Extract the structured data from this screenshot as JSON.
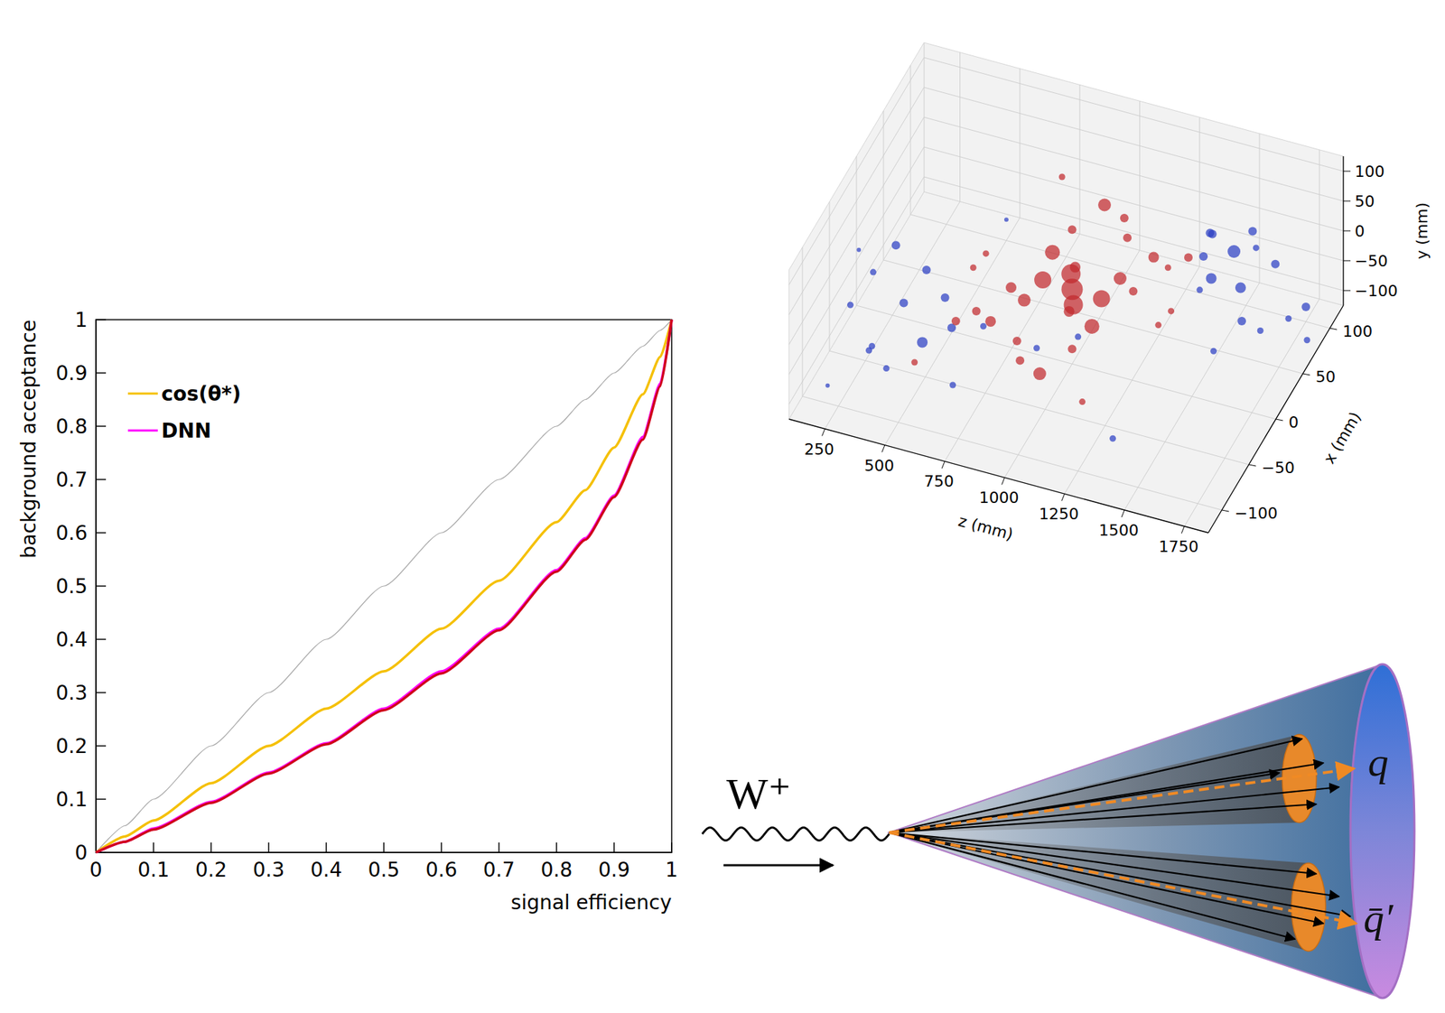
{
  "chart_data": [
    {
      "type": "line",
      "xlabel": "signal efficiency",
      "ylabel": "background acceptance",
      "x": [
        0,
        0.05,
        0.1,
        0.2,
        0.3,
        0.4,
        0.5,
        0.6,
        0.7,
        0.8,
        0.85,
        0.9,
        0.95,
        0.98,
        1
      ],
      "series": [
        {
          "color": "#a8a8a8",
          "line_style": "thin",
          "values": [
            0,
            0.05,
            0.1,
            0.2,
            0.3,
            0.4,
            0.5,
            0.6,
            0.7,
            0.8,
            0.85,
            0.9,
            0.95,
            0.98,
            1
          ]
        },
        {
          "name": "cos(θ*)",
          "color": "#f5c000",
          "values": [
            0,
            0.03,
            0.06,
            0.13,
            0.2,
            0.27,
            0.34,
            0.42,
            0.51,
            0.62,
            0.68,
            0.76,
            0.86,
            0.93,
            1
          ]
        },
        {
          "name": "DNN",
          "color": "#ff00ff",
          "values": [
            0,
            0.02,
            0.045,
            0.095,
            0.15,
            0.205,
            0.27,
            0.34,
            0.42,
            0.53,
            0.59,
            0.67,
            0.78,
            0.88,
            1
          ]
        },
        {
          "color": "#d0021b",
          "values": [
            0,
            0.02,
            0.043,
            0.093,
            0.148,
            0.203,
            0.267,
            0.336,
            0.417,
            0.527,
            0.587,
            0.667,
            0.775,
            0.875,
            1
          ]
        }
      ],
      "xlim": [
        0,
        1
      ],
      "ylim": [
        0,
        1
      ],
      "xticks": [
        0,
        0.1,
        0.2,
        0.3,
        0.4,
        0.5,
        0.6,
        0.7,
        0.8,
        0.9,
        1
      ],
      "yticks": [
        0,
        0.1,
        0.2,
        0.3,
        0.4,
        0.5,
        0.6,
        0.7,
        0.8,
        0.9,
        1
      ],
      "grid": false,
      "legend": "upper left"
    },
    {
      "type": "scatter3d",
      "xlabel": "x (mm)",
      "ylabel": "y (mm)",
      "zlabel": "z (mm)",
      "xlim": [
        -125,
        125
      ],
      "ylim": [
        -125,
        125
      ],
      "zlim": [
        100,
        1850
      ],
      "xticks": [
        {
          "value": -100,
          "label": "−100"
        },
        {
          "value": -50,
          "label": "−50"
        },
        0,
        50,
        100
      ],
      "yticks": [
        {
          "value": -100,
          "label": "−100"
        },
        {
          "value": -50,
          "label": "−50"
        },
        0,
        50,
        100
      ],
      "zticks": [
        250,
        500,
        750,
        1000,
        1250,
        1500,
        1750
      ],
      "grid": true,
      "series": [
        {
          "color": "#2b3fc4",
          "points": [
            {
              "x": -100,
              "y": 50,
              "z": 300,
              "size": 2
            },
            {
              "x": -80,
              "y": 80,
              "z": 350,
              "size": 2
            },
            {
              "x": -60,
              "y": 100,
              "z": 400,
              "size": 3
            },
            {
              "x": -100,
              "y": -40,
              "z": 450,
              "size": 2
            },
            {
              "x": -90,
              "y": 60,
              "z": 500,
              "size": 3
            },
            {
              "x": -70,
              "y": 90,
              "z": 550,
              "size": 3
            },
            {
              "x": -100,
              "y": 20,
              "z": 600,
              "size": 4
            },
            {
              "x": -80,
              "y": 70,
              "z": 650,
              "size": 3
            },
            {
              "x": -110,
              "y": 0,
              "z": 400,
              "size": 2
            },
            {
              "x": -60,
              "y": -80,
              "z": 300,
              "size": 2
            },
            {
              "x": -90,
              "y": 40,
              "z": 700,
              "size": 3
            },
            {
              "x": -110,
              "y": -20,
              "z": 750,
              "size": 2
            },
            {
              "x": 80,
              "y": -60,
              "z": 1400,
              "size": 4
            },
            {
              "x": 100,
              "y": -40,
              "z": 1450,
              "size": 5
            },
            {
              "x": 90,
              "y": -80,
              "z": 1500,
              "size": 4
            },
            {
              "x": 70,
              "y": -100,
              "z": 1550,
              "size": 3
            },
            {
              "x": 110,
              "y": -60,
              "z": 1600,
              "size": 3
            },
            {
              "x": 60,
              "y": -90,
              "z": 1650,
              "size": 2
            },
            {
              "x": 90,
              "y": -110,
              "z": 1700,
              "size": 2
            },
            {
              "x": 100,
              "y": -20,
              "z": 1350,
              "size": 3
            },
            {
              "x": 110,
              "y": -80,
              "z": 1300,
              "size": 3
            },
            {
              "x": 40,
              "y": -110,
              "z": 1500,
              "size": 2
            },
            {
              "x": 100,
              "y": -100,
              "z": 1750,
              "size": 3
            },
            {
              "x": 80,
              "y": -120,
              "z": 1800,
              "size": 2
            },
            {
              "x": -100,
              "y": 100,
              "z": 1250,
              "size": 2
            },
            {
              "x": -110,
              "y": 80,
              "z": 1100,
              "size": 2
            },
            {
              "x": -120,
              "y": 110,
              "z": 900,
              "size": 2
            },
            {
              "x": -40,
              "y": 40,
              "z": 200,
              "size": 1
            },
            {
              "x": -120,
              "y": -60,
              "z": 250,
              "size": 1
            },
            {
              "x": 30,
              "y": 100,
              "z": 1700,
              "size": 2
            },
            {
              "x": -30,
              "y": 110,
              "z": 1600,
              "size": 2
            },
            {
              "x": 60,
              "y": 50,
              "z": 1450,
              "size": 3
            },
            {
              "x": 90,
              "y": 20,
              "z": 1550,
              "size": 3
            },
            {
              "x": -80,
              "y": -90,
              "z": 1350,
              "size": 2
            },
            {
              "x": 100,
              "y": -90,
              "z": 500,
              "size": 1
            }
          ]
        },
        {
          "color": "#c0282d",
          "points": [
            {
              "x": 0,
              "y": 0,
              "z": 1000,
              "size": 9
            },
            {
              "x": 20,
              "y": -10,
              "z": 950,
              "size": 8
            },
            {
              "x": -20,
              "y": 10,
              "z": 1050,
              "size": 8
            },
            {
              "x": -10,
              "y": 20,
              "z": 900,
              "size": 7
            },
            {
              "x": 10,
              "y": -20,
              "z": 1100,
              "size": 7
            },
            {
              "x": 30,
              "y": 0,
              "z": 850,
              "size": 6
            },
            {
              "x": -30,
              "y": 0,
              "z": 1150,
              "size": 6
            },
            {
              "x": 0,
              "y": -40,
              "z": 800,
              "size": 5
            },
            {
              "x": 0,
              "y": 40,
              "z": 1200,
              "size": 5
            },
            {
              "x": -40,
              "y": -20,
              "z": 750,
              "size": 4
            },
            {
              "x": 40,
              "y": 20,
              "z": 1250,
              "size": 4
            },
            {
              "x": 20,
              "y": -60,
              "z": 700,
              "size": 4
            },
            {
              "x": -20,
              "y": 60,
              "z": 1300,
              "size": 3
            },
            {
              "x": -60,
              "y": 0,
              "z": 650,
              "size": 3
            },
            {
              "x": 60,
              "y": 0,
              "z": 1350,
              "size": 3
            },
            {
              "x": 0,
              "y": -80,
              "z": 600,
              "size": 3
            },
            {
              "x": 0,
              "y": 80,
              "z": 1400,
              "size": 2
            },
            {
              "x": 40,
              "y": -50,
              "z": 550,
              "size": 2
            },
            {
              "x": -40,
              "y": 50,
              "z": 1450,
              "size": 2
            },
            {
              "x": -70,
              "y": -70,
              "z": 500,
              "size": 2
            },
            {
              "x": -60,
              "y": -50,
              "z": 1000,
              "size": 5
            },
            {
              "x": 60,
              "y": 50,
              "z": 1000,
              "size": 5
            },
            {
              "x": 50,
              "y": -50,
              "z": 900,
              "size": 4
            },
            {
              "x": -50,
              "y": 50,
              "z": 1100,
              "size": 4
            },
            {
              "x": -80,
              "y": 30,
              "z": 950,
              "size": 3
            },
            {
              "x": 80,
              "y": -30,
              "z": 1050,
              "size": 3
            },
            {
              "x": -30,
              "y": -90,
              "z": 850,
              "size": 3
            },
            {
              "x": 30,
              "y": 90,
              "z": 1150,
              "size": 3
            },
            {
              "x": -70,
              "y": -60,
              "z": 1200,
              "size": 2
            },
            {
              "x": 70,
              "y": 60,
              "z": 800,
              "size": 2
            },
            {
              "x": 50,
              "y": -80,
              "z": 1300,
              "size": 2
            },
            {
              "x": -50,
              "y": 80,
              "z": 700,
              "size": 2
            },
            {
              "x": 0,
              "y": -100,
              "z": 1000,
              "size": 3
            },
            {
              "x": 0,
              "y": 100,
              "z": 1000,
              "size": 3
            }
          ]
        }
      ]
    }
  ],
  "diagram": {
    "particle": "W⁺",
    "quarks": [
      "q",
      "q̄′"
    ]
  }
}
